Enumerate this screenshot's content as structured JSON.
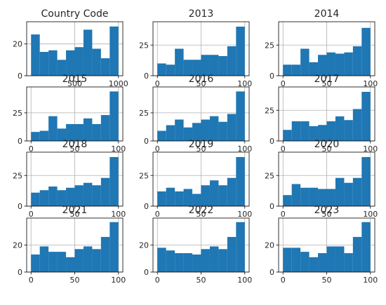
{
  "figure": {
    "background": "#ffffff",
    "bar_color": "#1f77b4",
    "grid_color": "#b0b0b0"
  },
  "chart_data": [
    {
      "type": "bar",
      "title": "Country Code",
      "grid": true,
      "bin_edges": [
        0,
        100,
        200,
        300,
        400,
        500,
        600,
        700,
        800,
        900,
        1000
      ],
      "values": [
        26,
        15,
        16,
        10,
        16,
        18,
        29,
        17,
        11,
        31
      ],
      "xlim": [
        -50,
        1050
      ],
      "ylim": [
        0,
        34
      ],
      "xticks": [
        500,
        1000
      ],
      "xtick_labels": [
        "500",
        "1000"
      ],
      "yticks": [
        0,
        20
      ],
      "ytick_labels": [
        "0",
        "20"
      ]
    },
    {
      "type": "bar",
      "title": "2013",
      "grid": true,
      "bin_edges": [
        0,
        10,
        20,
        30,
        40,
        50,
        60,
        70,
        80,
        90,
        100
      ],
      "values": [
        10,
        9,
        22,
        13,
        13,
        17,
        17,
        16,
        24,
        40
      ],
      "xlim": [
        -5,
        105
      ],
      "ylim": [
        0,
        44
      ],
      "xticks": [
        0,
        50,
        100
      ],
      "xtick_labels": [
        "0",
        "50",
        "100"
      ],
      "yticks": [
        0,
        25
      ],
      "ytick_labels": [
        "0",
        "25"
      ]
    },
    {
      "type": "bar",
      "title": "2014",
      "grid": true,
      "bin_edges": [
        0,
        10,
        20,
        30,
        40,
        50,
        60,
        70,
        80,
        90,
        100
      ],
      "values": [
        9,
        9,
        22,
        11,
        17,
        19,
        18,
        19,
        24,
        39
      ],
      "xlim": [
        -5,
        105
      ],
      "ylim": [
        0,
        44
      ],
      "xticks": [
        0,
        50,
        100
      ],
      "xtick_labels": [
        "0",
        "50",
        "100"
      ],
      "yticks": [
        0,
        25
      ],
      "ytick_labels": [
        "0",
        "25"
      ]
    },
    {
      "type": "bar",
      "title": "2015",
      "grid": true,
      "bin_edges": [
        0,
        10,
        20,
        30,
        40,
        50,
        60,
        70,
        80,
        90,
        100
      ],
      "values": [
        8,
        9,
        22,
        11,
        15,
        15,
        20,
        15,
        23,
        44
      ],
      "xlim": [
        -5,
        105
      ],
      "ylim": [
        0,
        48
      ],
      "xticks": [
        0,
        50,
        100
      ],
      "xtick_labels": [
        "0",
        "50",
        "100"
      ],
      "yticks": [
        0,
        25
      ],
      "ytick_labels": [
        "0",
        "25"
      ]
    },
    {
      "type": "bar",
      "title": "2016",
      "grid": true,
      "bin_edges": [
        0,
        10,
        20,
        30,
        40,
        50,
        60,
        70,
        80,
        90,
        100
      ],
      "values": [
        9,
        14,
        19,
        12,
        16,
        19,
        22,
        17,
        24,
        44
      ],
      "xlim": [
        -5,
        105
      ],
      "ylim": [
        0,
        48
      ],
      "xticks": [
        0,
        50,
        100
      ],
      "xtick_labels": [
        "0",
        "50",
        "100"
      ],
      "yticks": [
        0,
        25
      ],
      "ytick_labels": [
        "0",
        "25"
      ]
    },
    {
      "type": "bar",
      "title": "2017",
      "grid": true,
      "bin_edges": [
        0,
        10,
        20,
        30,
        40,
        50,
        60,
        70,
        80,
        90,
        100
      ],
      "values": [
        9,
        16,
        16,
        12,
        13,
        16,
        20,
        17,
        26,
        40
      ],
      "xlim": [
        -5,
        105
      ],
      "ylim": [
        0,
        44
      ],
      "xticks": [
        0,
        50,
        100
      ],
      "xtick_labels": [
        "0",
        "50",
        "100"
      ],
      "yticks": [
        0,
        25
      ],
      "ytick_labels": [
        "0",
        "25"
      ]
    },
    {
      "type": "bar",
      "title": "2018",
      "grid": true,
      "bin_edges": [
        0,
        10,
        20,
        30,
        40,
        50,
        60,
        70,
        80,
        90,
        100
      ],
      "values": [
        11,
        13,
        16,
        13,
        15,
        17,
        19,
        17,
        23,
        40
      ],
      "xlim": [
        -5,
        105
      ],
      "ylim": [
        0,
        44
      ],
      "xticks": [
        0,
        50,
        100
      ],
      "xtick_labels": [
        "0",
        "50",
        "100"
      ],
      "yticks": [
        0,
        25
      ],
      "ytick_labels": [
        "0",
        "25"
      ]
    },
    {
      "type": "bar",
      "title": "2019",
      "grid": true,
      "bin_edges": [
        0,
        10,
        20,
        30,
        40,
        50,
        60,
        70,
        80,
        90,
        100
      ],
      "values": [
        12,
        15,
        12,
        14,
        10,
        17,
        21,
        17,
        23,
        40
      ],
      "xlim": [
        -5,
        105
      ],
      "ylim": [
        0,
        44
      ],
      "xticks": [
        0,
        50,
        100
      ],
      "xtick_labels": [
        "0",
        "50",
        "100"
      ],
      "yticks": [
        0,
        25
      ],
      "ytick_labels": [
        "0",
        "25"
      ]
    },
    {
      "type": "bar",
      "title": "2020",
      "grid": true,
      "bin_edges": [
        0,
        10,
        20,
        30,
        40,
        50,
        60,
        70,
        80,
        90,
        100
      ],
      "values": [
        9,
        18,
        15,
        15,
        14,
        14,
        23,
        19,
        23,
        40
      ],
      "xlim": [
        -5,
        105
      ],
      "ylim": [
        0,
        44
      ],
      "xticks": [
        0,
        50,
        100
      ],
      "xtick_labels": [
        "0",
        "50",
        "100"
      ],
      "yticks": [
        0,
        25
      ],
      "ytick_labels": [
        "0",
        "25"
      ]
    },
    {
      "type": "bar",
      "title": "2021",
      "grid": true,
      "bin_edges": [
        0,
        10,
        20,
        30,
        40,
        50,
        60,
        70,
        80,
        90,
        100
      ],
      "values": [
        13,
        19,
        15,
        15,
        11,
        17,
        19,
        17,
        26,
        37
      ],
      "xlim": [
        -5,
        105
      ],
      "ylim": [
        0,
        40
      ],
      "xticks": [
        0,
        50,
        100
      ],
      "xtick_labels": [
        "0",
        "50",
        "100"
      ],
      "yticks": [
        0,
        20
      ],
      "ytick_labels": [
        "0",
        "20"
      ]
    },
    {
      "type": "bar",
      "title": "2022",
      "grid": true,
      "bin_edges": [
        0,
        10,
        20,
        30,
        40,
        50,
        60,
        70,
        80,
        90,
        100
      ],
      "values": [
        18,
        16,
        14,
        14,
        13,
        17,
        19,
        17,
        26,
        37
      ],
      "xlim": [
        -5,
        105
      ],
      "ylim": [
        0,
        40
      ],
      "xticks": [
        0,
        50,
        100
      ],
      "xtick_labels": [
        "0",
        "50",
        "100"
      ],
      "yticks": [
        0,
        20
      ],
      "ytick_labels": [
        "0",
        "20"
      ]
    },
    {
      "type": "bar",
      "title": "2023",
      "grid": true,
      "bin_edges": [
        0,
        10,
        20,
        30,
        40,
        50,
        60,
        70,
        80,
        90,
        100
      ],
      "values": [
        18,
        18,
        15,
        11,
        14,
        19,
        19,
        14,
        26,
        37
      ],
      "xlim": [
        -5,
        105
      ],
      "ylim": [
        0,
        40
      ],
      "xticks": [
        0,
        50,
        100
      ],
      "xtick_labels": [
        "0",
        "50",
        "100"
      ],
      "yticks": [
        0,
        20
      ],
      "ytick_labels": [
        "0",
        "20"
      ]
    }
  ]
}
